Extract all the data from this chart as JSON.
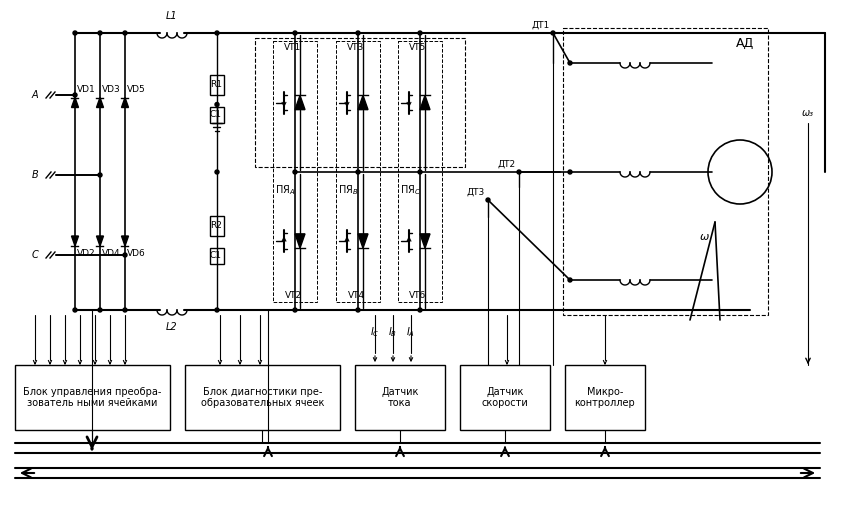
{
  "bg_color": "#ffffff",
  "line_color": "#000000",
  "font_size": 7.0,
  "block_labels": [
    "Блок управления преобра-\nзователь ными ячейками",
    "Блок диагностики пре-\nобразовательных ячеек",
    "Датчик\nтока",
    "Датчик\nскорости",
    "Микро-\nконтроллер"
  ]
}
